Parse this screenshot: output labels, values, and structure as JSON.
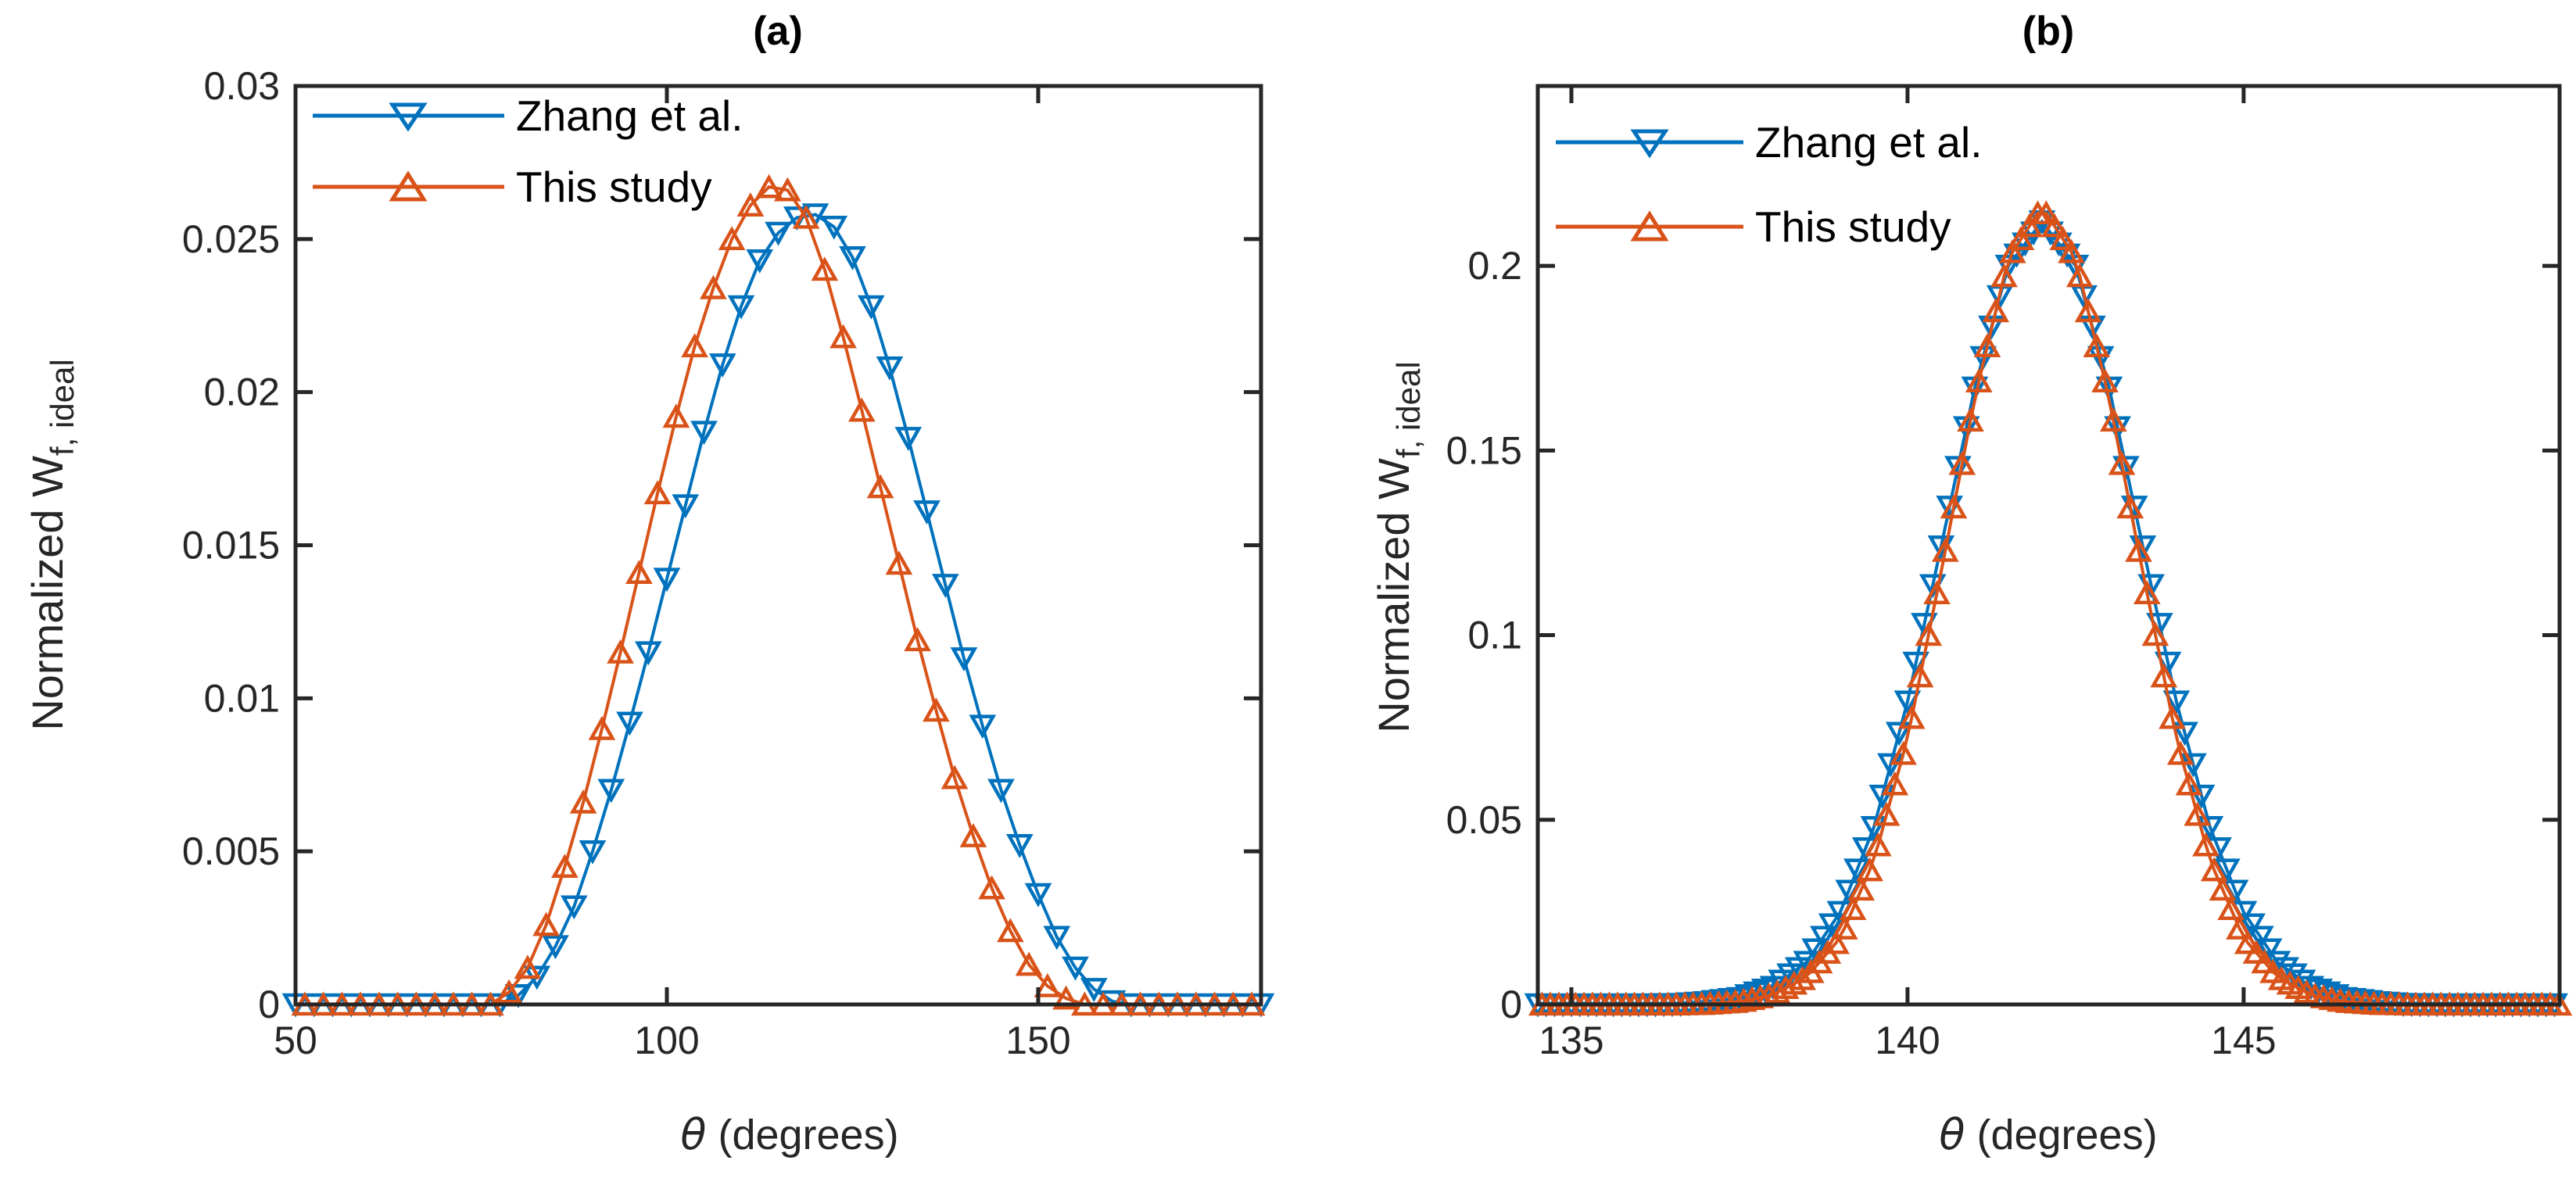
{
  "colors": {
    "zhang": "#0072BD",
    "this_study": "#D95319",
    "axis": "#262626",
    "text": "#262626"
  },
  "labels": {
    "xlabel_theta": "θ",
    "xlabel_rest": " (degrees)",
    "ylabel_main": "Normalized W",
    "ylabel_sub": "f, ideal"
  },
  "chart_data": [
    {
      "id": "a",
      "type": "line",
      "title": "(a)",
      "xlabel": "θ (degrees)",
      "ylabel": "Normalized W_{f, ideal}",
      "xlim": [
        50,
        180
      ],
      "ylim": [
        0,
        0.03
      ],
      "xticks": [
        50,
        100,
        150
      ],
      "xtick_labels": [
        "50",
        "100",
        "150"
      ],
      "yticks": [
        0,
        0.005,
        0.01,
        0.015,
        0.02,
        0.025,
        0.03
      ],
      "ytick_labels": [
        "0",
        "0.005",
        "0.01",
        "0.015",
        "0.02",
        "0.025",
        "0.03"
      ],
      "grid": false,
      "legend_position": "northwest",
      "marker_step_deg": 2.5,
      "series": [
        {
          "name": "Zhang et al.",
          "color_key": "zhang",
          "marker": "triangle-down",
          "marker_offset": 0,
          "peak": {
            "theta": 120,
            "value": 0.0258
          },
          "keypoints": [
            [
              50,
              0
            ],
            [
              77.5,
              0
            ],
            [
              80,
              0.0003
            ],
            [
              82.5,
              0.0009
            ],
            [
              85,
              0.0019
            ],
            [
              87.5,
              0.0032
            ],
            [
              90,
              0.005
            ],
            [
              92.5,
              0.007
            ],
            [
              95,
              0.0092
            ],
            [
              97.5,
              0.0115
            ],
            [
              100,
              0.0139
            ],
            [
              102.5,
              0.0163
            ],
            [
              105,
              0.0187
            ],
            [
              107.5,
              0.0209
            ],
            [
              110,
              0.0228
            ],
            [
              112.5,
              0.0243
            ],
            [
              115,
              0.0252
            ],
            [
              117.5,
              0.0257
            ],
            [
              120,
              0.0258
            ],
            [
              122.5,
              0.0254
            ],
            [
              125,
              0.0244
            ],
            [
              127.5,
              0.0228
            ],
            [
              130,
              0.0208
            ],
            [
              132.5,
              0.0185
            ],
            [
              135,
              0.0161
            ],
            [
              137.5,
              0.0137
            ],
            [
              140,
              0.0113
            ],
            [
              142.5,
              0.0091
            ],
            [
              145,
              0.007
            ],
            [
              147.5,
              0.0052
            ],
            [
              150,
              0.0036
            ],
            [
              152.5,
              0.0022
            ],
            [
              155,
              0.0012
            ],
            [
              157.5,
              0.0005
            ],
            [
              160,
              0.0001
            ],
            [
              162.5,
              0
            ],
            [
              180,
              0
            ]
          ]
        },
        {
          "name": "This study",
          "color_key": "this_study",
          "marker": "triangle-up",
          "marker_offset": 1.25,
          "peak": {
            "theta": 115,
            "value": 0.0268
          },
          "keypoints": [
            [
              50,
              0
            ],
            [
              76.25,
              0
            ],
            [
              78.75,
              0.0004
            ],
            [
              81.25,
              0.0012
            ],
            [
              83.75,
              0.0026
            ],
            [
              86.25,
              0.0045
            ],
            [
              88.75,
              0.0066
            ],
            [
              91.25,
              0.009
            ],
            [
              93.75,
              0.0115
            ],
            [
              96.25,
              0.0141
            ],
            [
              98.75,
              0.0167
            ],
            [
              101.25,
              0.0192
            ],
            [
              103.75,
              0.0215
            ],
            [
              106.25,
              0.0234
            ],
            [
              108.75,
              0.025
            ],
            [
              111.25,
              0.0261
            ],
            [
              113.75,
              0.0267
            ],
            [
              116.25,
              0.0266
            ],
            [
              118.75,
              0.0257
            ],
            [
              121.25,
              0.024
            ],
            [
              123.75,
              0.0218
            ],
            [
              126.25,
              0.0194
            ],
            [
              128.75,
              0.0169
            ],
            [
              131.25,
              0.0144
            ],
            [
              133.75,
              0.0119
            ],
            [
              136.25,
              0.0096
            ],
            [
              138.75,
              0.0074
            ],
            [
              141.25,
              0.0055
            ],
            [
              143.75,
              0.0038
            ],
            [
              146.25,
              0.0024
            ],
            [
              148.75,
              0.0013
            ],
            [
              151.25,
              0.0006
            ],
            [
              153.75,
              0.0002
            ],
            [
              156.25,
              0
            ],
            [
              180,
              0
            ]
          ]
        }
      ]
    },
    {
      "id": "b",
      "type": "line",
      "title": "(b)",
      "xlabel": "θ (degrees)",
      "ylabel": "Normalized W_{f, ideal}",
      "xlim": [
        134.5,
        149.7
      ],
      "ylim": [
        0,
        0.2487
      ],
      "xticks": [
        135,
        140,
        145
      ],
      "xtick_labels": [
        "135",
        "140",
        "145"
      ],
      "yticks": [
        0,
        0.05,
        0.1,
        0.15,
        0.2
      ],
      "ytick_labels": [
        "0",
        "0.05",
        "0.1",
        "0.15",
        "0.2"
      ],
      "grid": false,
      "legend_position": "northwest",
      "marker_step_deg": 0.125,
      "series": [
        {
          "name": "Zhang et al.",
          "color_key": "zhang",
          "marker": "triangle-down",
          "marker_offset": 0,
          "peak": {
            "theta": 142,
            "value": 0.212
          },
          "keypoints": [
            [
              134.5,
              0
            ],
            [
              136.25,
              0
            ],
            [
              136.625,
              0.0001
            ],
            [
              137,
              0.0006
            ],
            [
              137.5,
              0.0017
            ],
            [
              138,
              0.0047
            ],
            [
              138.5,
              0.0115
            ],
            [
              139,
              0.025
            ],
            [
              139.5,
              0.048
            ],
            [
              140,
              0.082
            ],
            [
              140.5,
              0.124
            ],
            [
              141,
              0.167
            ],
            [
              141.5,
              0.2
            ],
            [
              142,
              0.212
            ],
            [
              142.5,
              0.2
            ],
            [
              143,
              0.167
            ],
            [
              143.5,
              0.124
            ],
            [
              144,
              0.082
            ],
            [
              144.5,
              0.048
            ],
            [
              145,
              0.025
            ],
            [
              145.5,
              0.0115
            ],
            [
              146,
              0.0047
            ],
            [
              146.5,
              0.0017
            ],
            [
              147,
              0.0006
            ],
            [
              147.375,
              0.0001
            ],
            [
              147.75,
              0
            ],
            [
              149.7,
              0
            ]
          ]
        },
        {
          "name": "This study",
          "color_key": "this_study",
          "marker": "triangle-up",
          "marker_offset": 0.0625,
          "peak": {
            "theta": 142,
            "value": 0.216
          },
          "keypoints": [
            [
              134.5,
              0
            ],
            [
              136.5,
              0
            ],
            [
              137,
              0.0002
            ],
            [
              137.5,
              0.0008
            ],
            [
              138,
              0.0027
            ],
            [
              138.5,
              0.0075
            ],
            [
              139,
              0.018
            ],
            [
              139.5,
              0.039
            ],
            [
              140,
              0.072
            ],
            [
              140.5,
              0.117
            ],
            [
              141,
              0.164
            ],
            [
              141.5,
              0.202
            ],
            [
              142,
              0.216
            ],
            [
              142.5,
              0.202
            ],
            [
              143,
              0.164
            ],
            [
              143.5,
              0.117
            ],
            [
              144,
              0.072
            ],
            [
              144.5,
              0.039
            ],
            [
              145,
              0.018
            ],
            [
              145.5,
              0.0075
            ],
            [
              146,
              0.0027
            ],
            [
              146.5,
              0.0008
            ],
            [
              147,
              0.0002
            ],
            [
              147.5,
              0
            ],
            [
              149.7,
              0
            ]
          ]
        }
      ]
    }
  ]
}
